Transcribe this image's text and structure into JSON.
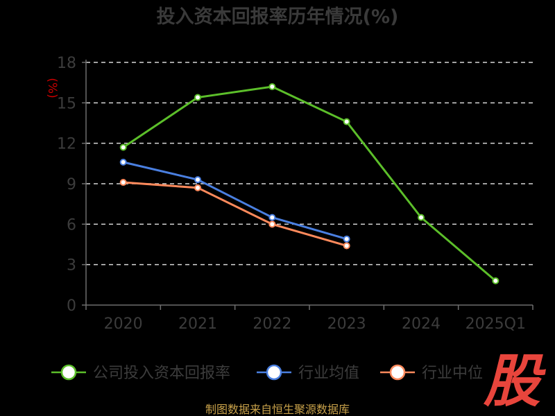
{
  "colors": {
    "company": "#5cbf2a",
    "industry_avg": "#4a7fe0",
    "industry_median": "#ff8a5c"
  },
  "footer": "制图数据来自恒生聚源数据库",
  "stamp": "股",
  "chart_data": {
    "type": "line",
    "title": "投入资本回报率历年情况(%)",
    "ylabel": "(%)",
    "xlabel": "",
    "categories": [
      "2020",
      "2021",
      "2022",
      "2023",
      "2024",
      "2025Q1"
    ],
    "ylim": [
      0,
      18
    ],
    "yticks": [
      0,
      3,
      6,
      9,
      12,
      15,
      18
    ],
    "grid": true,
    "legend": "bottom",
    "series": [
      {
        "name": "公司投入资本回报率",
        "values": [
          11.7,
          15.4,
          16.2,
          13.6,
          6.5,
          1.8
        ]
      },
      {
        "name": "行业均值",
        "values": [
          10.6,
          9.3,
          6.5,
          4.9,
          null,
          null
        ]
      },
      {
        "name": "行业中位",
        "values": [
          9.1,
          8.7,
          6.0,
          4.4,
          null,
          null
        ]
      }
    ]
  }
}
